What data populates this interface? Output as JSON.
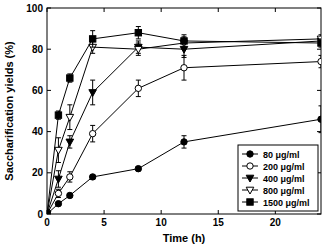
{
  "chart_data": {
    "type": "line",
    "x_label": "Time (h)",
    "y_label": "Saccharification yields (%)",
    "x": [
      0,
      1,
      2,
      4,
      8,
      12,
      24
    ],
    "xlim": [
      0,
      24
    ],
    "xticks": [
      0,
      5,
      10,
      15,
      20
    ],
    "ylim": [
      0,
      100
    ],
    "yticks": [
      0,
      20,
      40,
      60,
      80,
      100
    ],
    "legend": "lower right",
    "series": [
      {
        "name": "80 μg/ml",
        "color": "#000000",
        "marker": "circle",
        "line_style": "solid",
        "values": [
          0,
          5,
          9,
          18,
          22,
          35,
          46
        ],
        "errors": [
          0,
          0.5,
          1,
          1,
          1,
          3,
          6.5
        ]
      },
      {
        "name": "200 μg/ml",
        "color": "#000000",
        "marker": "circle-open",
        "line_style": "solid",
        "values": [
          0,
          10,
          18,
          39,
          61,
          71,
          74
        ],
        "errors": [
          0,
          2,
          2.5,
          4,
          4,
          6,
          3
        ]
      },
      {
        "name": "400 μg/ml",
        "color": "#000000",
        "marker": "triangle-down",
        "line_style": "solid",
        "values": [
          0,
          17,
          35,
          59,
          81,
          80,
          84
        ],
        "errors": [
          0,
          4,
          3,
          6,
          3,
          4,
          2
        ]
      },
      {
        "name": "800 μg/ml",
        "color": "#000000",
        "marker": "triangle-down-open",
        "line_style": "solid",
        "values": [
          0,
          31,
          47,
          81,
          80,
          83,
          85
        ],
        "errors": [
          0,
          6,
          6,
          3,
          3,
          3,
          2
        ]
      },
      {
        "name": "1500 μg/ml",
        "color": "#000000",
        "marker": "square",
        "line_style": "solid",
        "values": [
          0,
          48,
          66,
          85,
          88,
          84,
          83
        ],
        "errors": [
          0,
          2,
          2,
          4,
          3,
          3,
          2
        ]
      }
    ]
  }
}
